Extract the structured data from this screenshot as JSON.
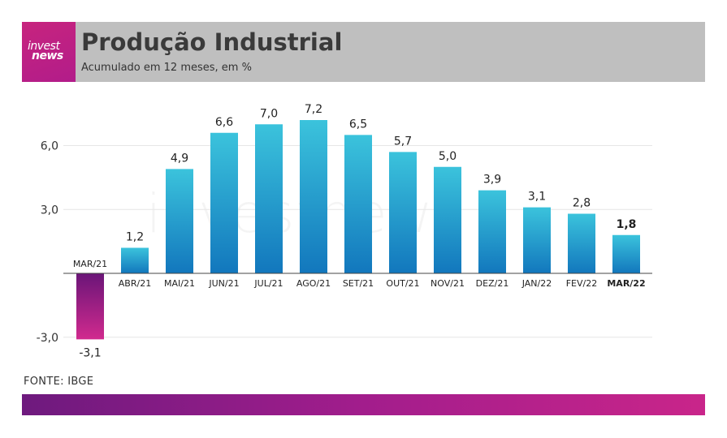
{
  "header": {
    "logo_line1": "invest",
    "logo_line2": "news",
    "title": "Produção Industrial",
    "subtitle": "Acumulado em 12 meses, em %"
  },
  "source": "FONTE: IBGE",
  "watermark": "investnews",
  "colors": {
    "positive_top": "#3bc3dc",
    "positive_bottom": "#1277bd",
    "negative_top": "#6a1578",
    "negative_bottom": "#d12a8e",
    "header_bg": "#bfbfbf",
    "logo_bg": "#c7247e",
    "grid": "#e6e6e6"
  },
  "chart_data": {
    "type": "bar",
    "categories": [
      "MAR/21",
      "ABR/21",
      "MAI/21",
      "JUN/21",
      "JUL/21",
      "AGO/21",
      "SET/21",
      "OUT/21",
      "NOV/21",
      "DEZ/21",
      "JAN/22",
      "FEV/22",
      "MAR/22"
    ],
    "values": [
      -3.1,
      1.2,
      4.9,
      6.6,
      7.0,
      7.2,
      6.5,
      5.7,
      5.0,
      3.9,
      3.1,
      2.8,
      1.8
    ],
    "value_labels": [
      "-3,1",
      "1,2",
      "4,9",
      "6,6",
      "7,0",
      "7,2",
      "6,5",
      "5,7",
      "5,0",
      "3,9",
      "3,1",
      "2,8",
      "1,8"
    ],
    "highlight_last": true,
    "yticks": [
      -3.0,
      3.0,
      6.0
    ],
    "ytick_labels": [
      "-3,0",
      "3,0",
      "6,0"
    ],
    "ylim": [
      -3.1,
      7.2
    ],
    "grid": true,
    "legend": "none"
  }
}
